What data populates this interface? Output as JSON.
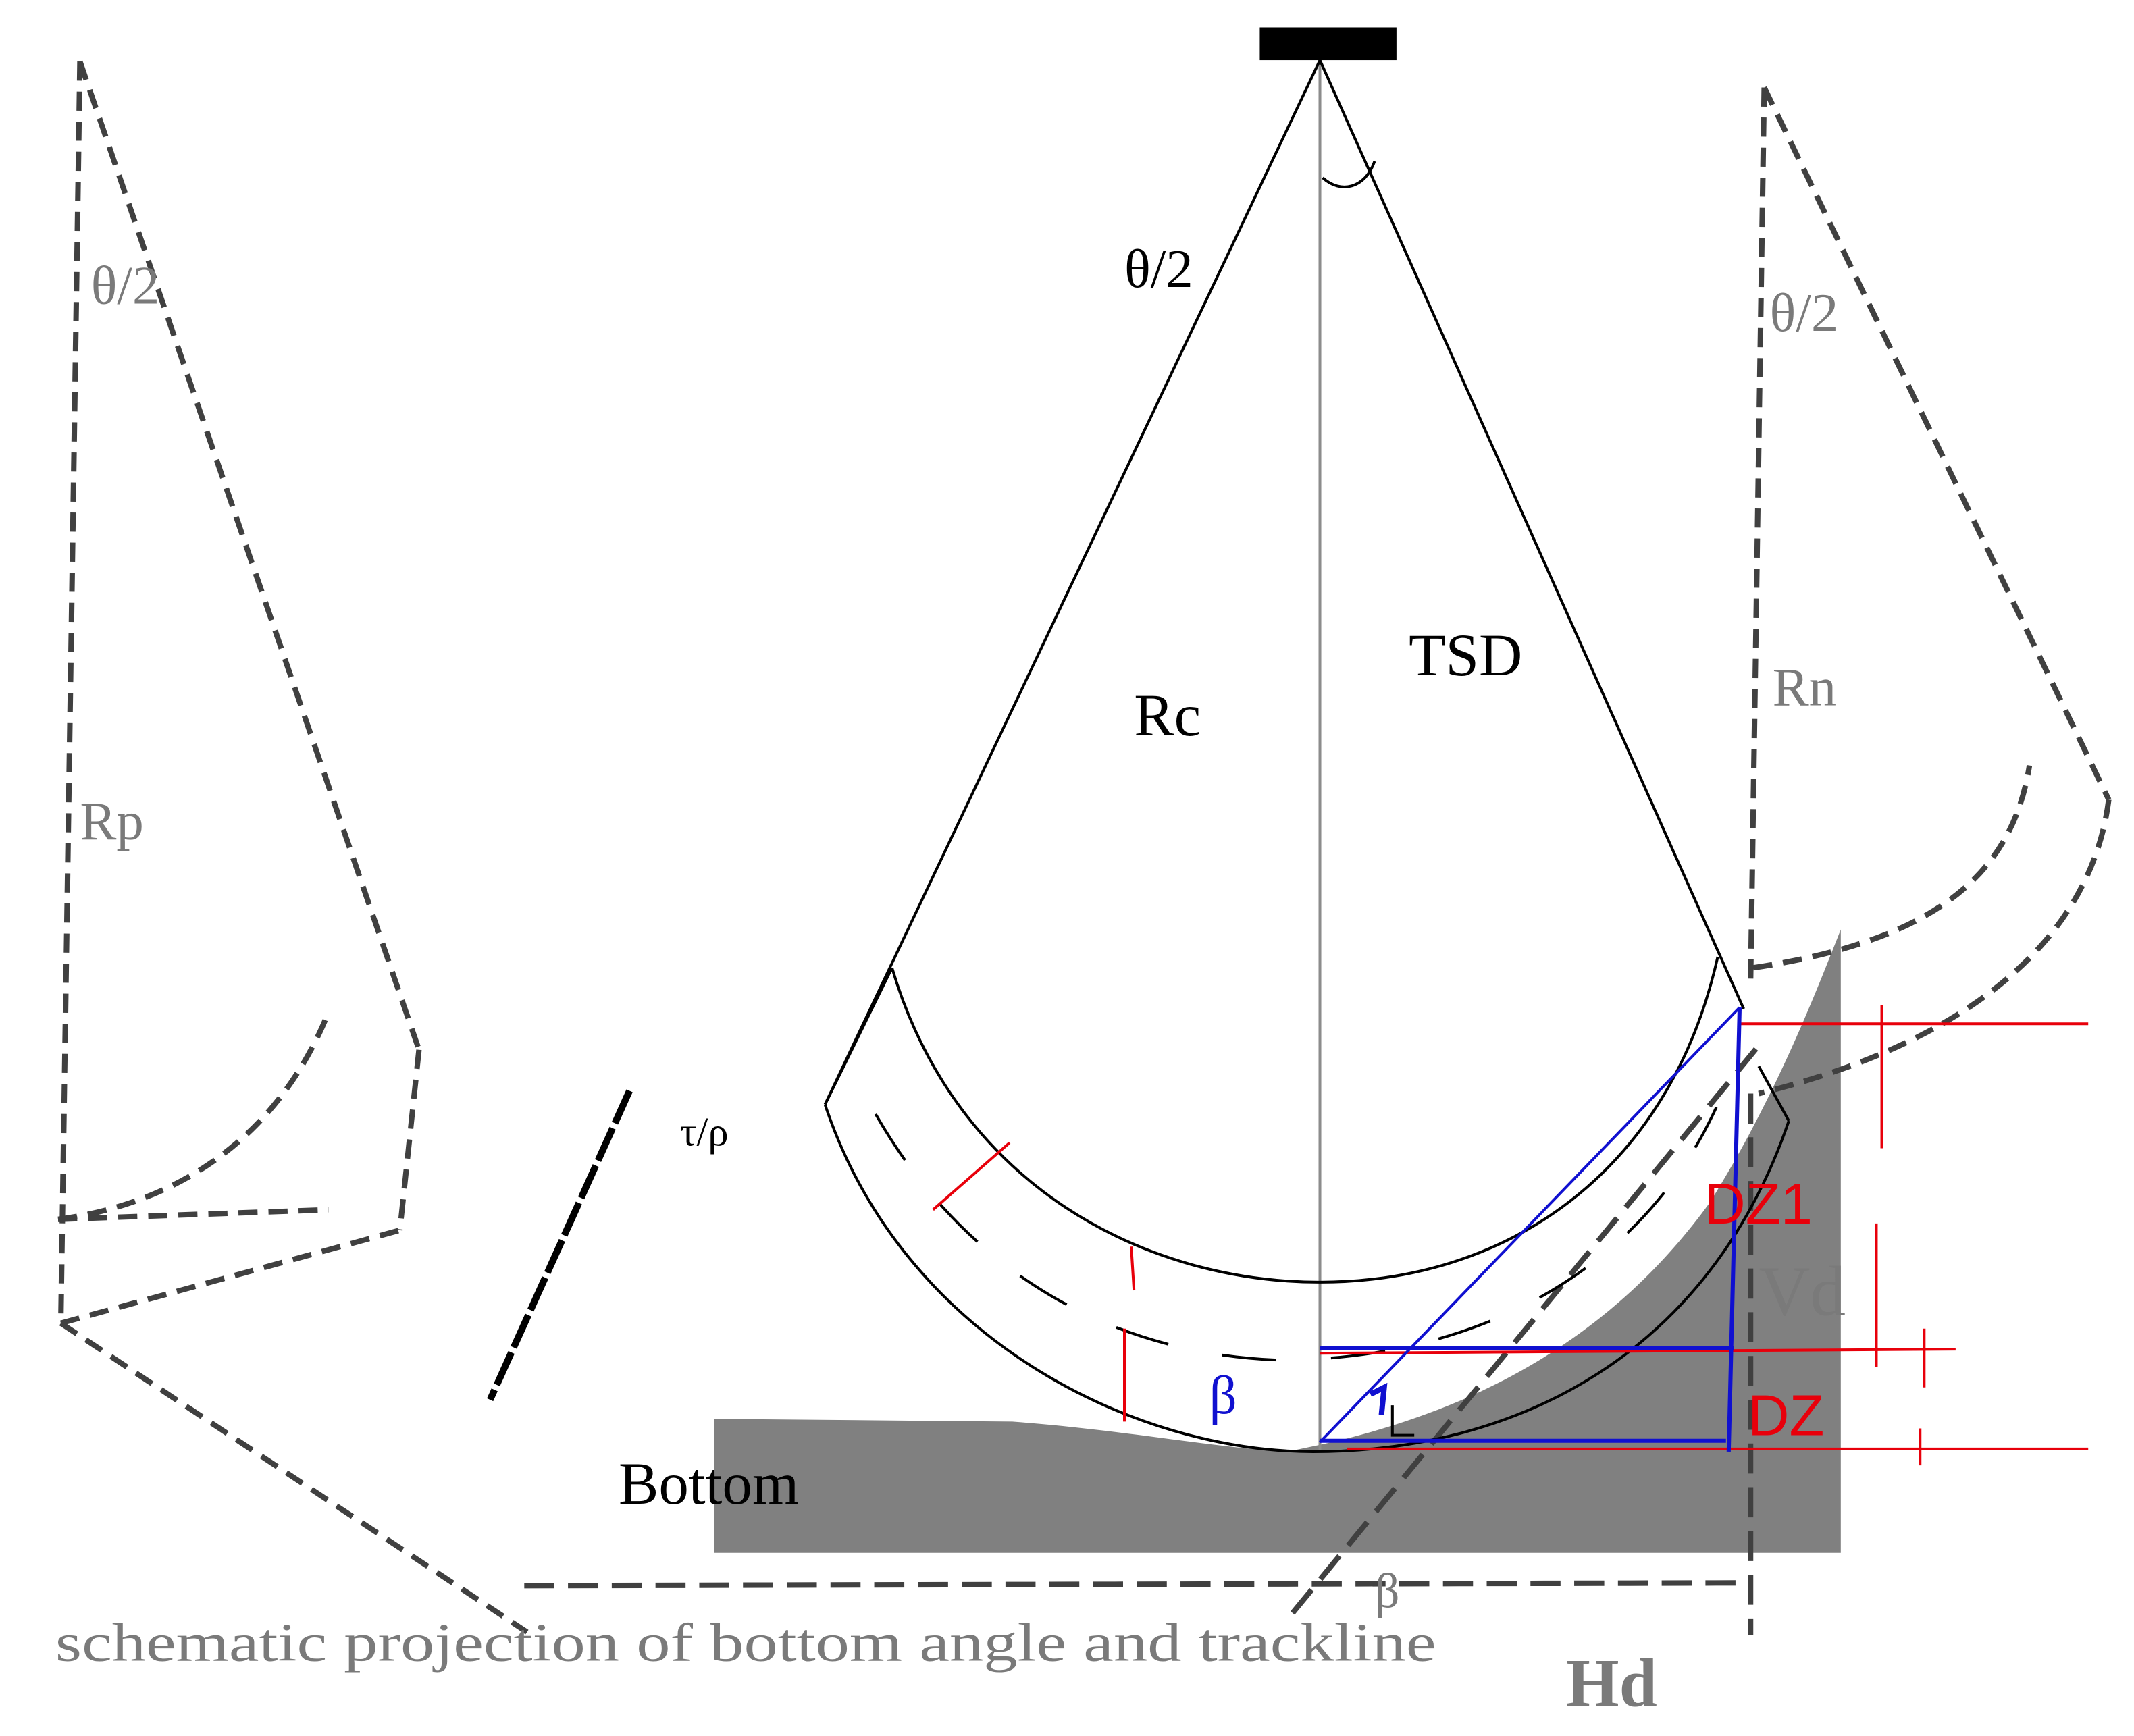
{
  "labels": {
    "theta_left": "θ/2",
    "theta_center": "θ/2",
    "theta_right": "θ/2",
    "rp": "Rp",
    "rc": "Rc",
    "tsd": "TSD",
    "rn": "Rn",
    "dz1": "DZ1",
    "vd": "Vd",
    "dz": "DZ",
    "beta_blue": "β",
    "beta_bottom": "β",
    "bottom": "Bottom",
    "hd": "Hd",
    "caption": "schematic projection of bottom angle and trackline"
  },
  "colors": {
    "ink": "#000000",
    "grey_text": "#7a7a7a",
    "seabed_fill": "#808080",
    "red": "#e8000b",
    "blue": "#1010d0",
    "axis": "#8c8c8c",
    "dashed": "#404040"
  }
}
